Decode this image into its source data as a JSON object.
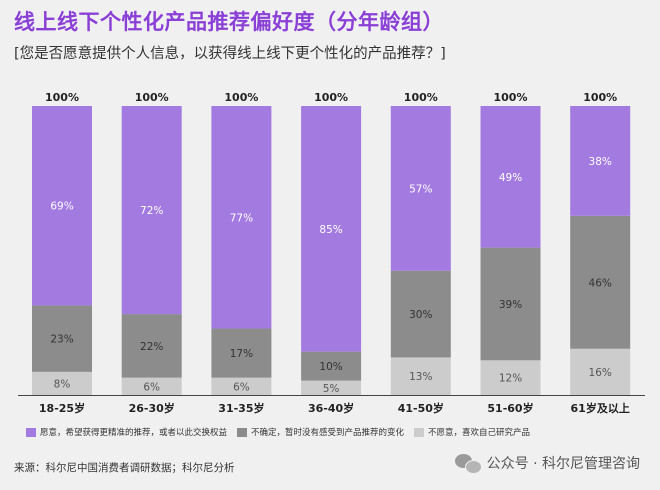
{
  "title": "线上线下个性化产品推荐偏好度（分年龄组）",
  "subtitle": "[您是否愿意提供个人信息，以获得线上线下更个性化的产品推荐？]",
  "colors": {
    "series1": "#a37ae0",
    "series2": "#8c8c8c",
    "series3": "#cccccc",
    "title": "#8a3fd6"
  },
  "chart_data": {
    "type": "bar",
    "stacked": true,
    "categories": [
      "18-25岁",
      "26-30岁",
      "31-35岁",
      "36-40岁",
      "41-50岁",
      "51-60岁",
      "61岁及以上"
    ],
    "totals": [
      "100%",
      "100%",
      "100%",
      "100%",
      "100%",
      "100%",
      "100%"
    ],
    "series": [
      {
        "name": "不愿意，喜欢自己研究产品",
        "values": [
          8,
          6,
          6,
          5,
          13,
          12,
          16
        ]
      },
      {
        "name": "不确定，暂时没有感受到产品推荐的变化",
        "values": [
          23,
          22,
          17,
          10,
          30,
          39,
          46
        ]
      },
      {
        "name": "愿意，希望获得更精准的推荐，或者以此交换权益",
        "values": [
          69,
          72,
          77,
          85,
          57,
          49,
          38
        ]
      }
    ],
    "ylim": [
      0,
      100
    ],
    "value_suffix": "%",
    "legend_position": "bottom"
  },
  "legend": {
    "items": [
      "愿意，希望获得更精准的推荐，或者以此交换权益",
      "不确定，暂时没有感受到产品推荐的变化",
      "不愿意，喜欢自己研究产品"
    ]
  },
  "source": "来源：科尔尼中国消费者调研数据；科尔尼分析",
  "watermark": "公众号 · 科尔尼管理咨询",
  "watermark_icon": "wechat-icon"
}
